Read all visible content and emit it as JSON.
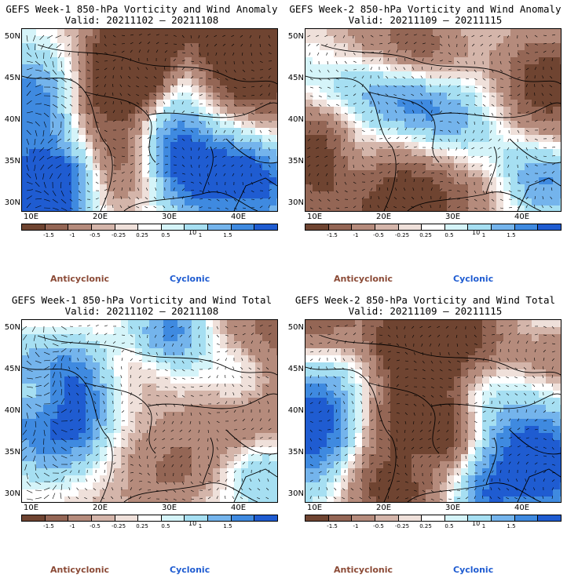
{
  "panels": [
    {
      "title": "GEFS Week-1 850-hPa Vorticity and Wind Anomaly",
      "valid": "Valid: 20211102 – 20211108"
    },
    {
      "title": "GEFS Week-2 850-hPa Vorticity and Wind Anomaly",
      "valid": "Valid: 20211109 – 20211115"
    },
    {
      "title": "GEFS Week-1 850-hPa Vorticity and Wind Total",
      "valid": "Valid: 20211102 – 20211108"
    },
    {
      "title": "GEFS Week-2 850-hPa Vorticity and Wind Total",
      "valid": "Valid: 20211109 – 20211115"
    }
  ],
  "axes": {
    "lat_labels": [
      "50N",
      "45N",
      "40N",
      "35N",
      "30N"
    ],
    "lon_labels": [
      "10E",
      "20E",
      "30E",
      "40E"
    ]
  },
  "colorbar": {
    "colors": [
      "#6f4431",
      "#946655",
      "#b58b7c",
      "#d4b5aa",
      "#efe0da",
      "#ffffff",
      "#d5f4f9",
      "#a6dff2",
      "#74b4ec",
      "#3f8ae0",
      "#1f5cd1"
    ],
    "labels": [
      "-1.5",
      "-1",
      "-0.5",
      "-0.25",
      "0.25",
      "0.5",
      "1",
      "1.5"
    ],
    "mid_label": "10"
  },
  "legend": {
    "anticyclonic": "Anticyclonic",
    "cyclonic": "Cyclonic"
  },
  "colors": {
    "anticyclonic": "#8b4a36",
    "cyclonic": "#1f5cd1"
  }
}
